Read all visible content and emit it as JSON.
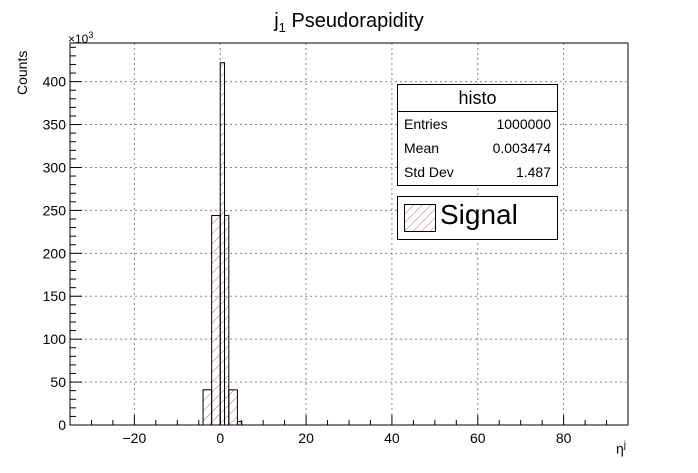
{
  "chart_data": {
    "type": "bar",
    "title_main": "j",
    "title_sub": "1",
    "title_rest": " Pseudorapidity",
    "xlabel": "η",
    "xlabel_sup": "j",
    "ylabel": "Counts",
    "y_multiplier": "×10",
    "y_multiplier_exp": "3",
    "xlim": [
      -35,
      95
    ],
    "ylim": [
      0,
      445
    ],
    "x_ticks": [
      -20,
      0,
      20,
      40,
      60,
      80
    ],
    "x_tick_labels": [
      "−20",
      "0",
      "20",
      "40",
      "60",
      "80"
    ],
    "y_ticks": [
      0,
      50,
      100,
      150,
      200,
      250,
      300,
      350,
      400
    ],
    "y_tick_labels": [
      "0",
      "50",
      "100",
      "150",
      "200",
      "250",
      "300",
      "350",
      "400"
    ],
    "grid": true,
    "bins": [
      {
        "x0": -4,
        "x1": -2,
        "value": 41
      },
      {
        "x0": -2,
        "x1": 0,
        "value": 244
      },
      {
        "x0": 0,
        "x1": 1,
        "value": 422
      },
      {
        "x0": 1,
        "x1": 2,
        "value": 244
      },
      {
        "x0": 2,
        "x1": 4,
        "value": 41
      },
      {
        "x0": 4,
        "x1": 5,
        "value": 4
      }
    ],
    "fill_color": "#c0607a",
    "stats": {
      "name": "histo",
      "rows": [
        {
          "label": "Entries",
          "value": "1000000"
        },
        {
          "label": "Mean",
          "value": "0.003474"
        },
        {
          "label": "Std Dev",
          "value": "1.487"
        }
      ]
    },
    "legend": {
      "label": "Signal",
      "placement": "top-right"
    }
  }
}
